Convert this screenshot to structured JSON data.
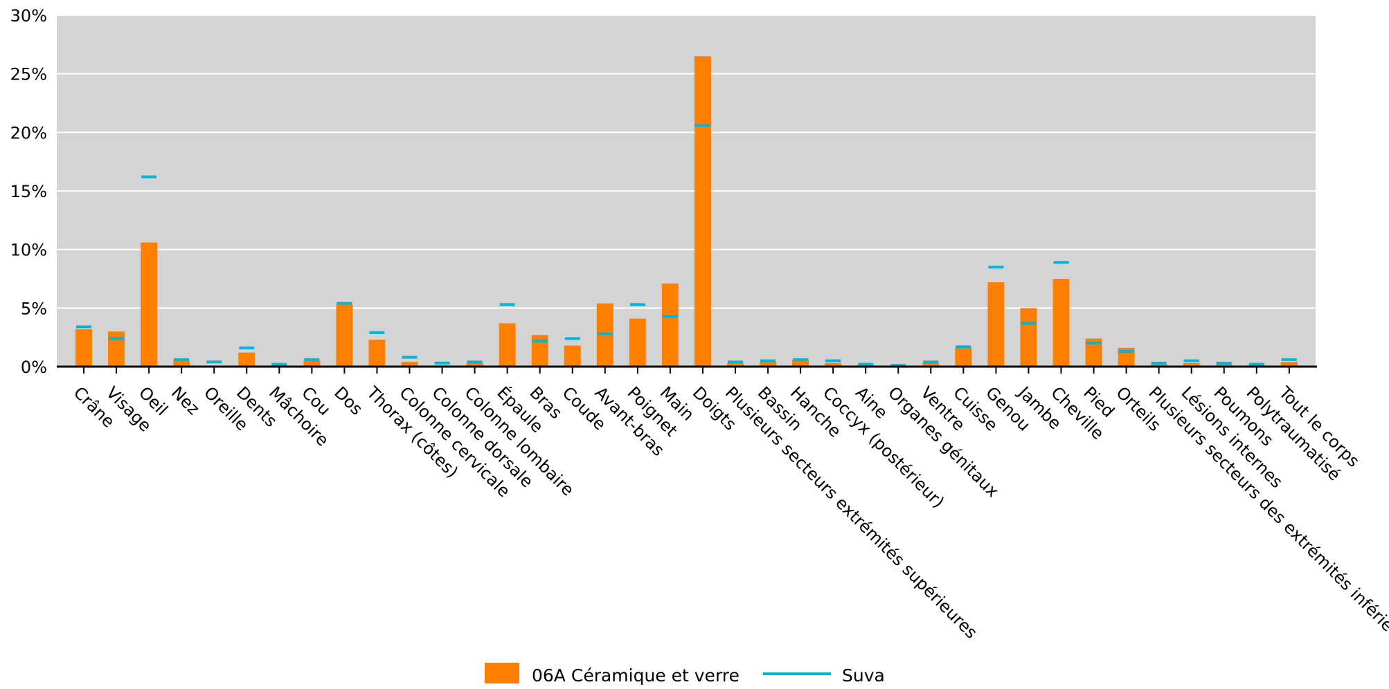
{
  "chart_data": {
    "type": "bar",
    "title": "",
    "xlabel": "",
    "ylabel": "",
    "ylim": [
      0,
      30
    ],
    "y_ticks": [
      "0%",
      "5%",
      "10%",
      "15%",
      "20%",
      "25%",
      "30%"
    ],
    "y_tick_values": [
      0,
      5,
      10,
      15,
      20,
      25,
      30
    ],
    "grid": true,
    "legend_position": "bottom-center",
    "categories": [
      "Crâne",
      "Visage",
      "Oeil",
      "Nez",
      "Oreille",
      "Dents",
      "Mâchoire",
      "Cou",
      "Dos",
      "Thorax (côtes)",
      "Colonne cervicale",
      "Colonne dorsale",
      "Colonne lombaire",
      "Épaule",
      "Bras",
      "Coude",
      "Avant-bras",
      "Poignet",
      "Main",
      "Doigts",
      "Plusieurs secteurs extrémités supérieures",
      "Bassin",
      "Hanche",
      "Coccyx (postérieur)",
      "Aine",
      "Organes génitaux",
      "Ventre",
      "Cuisse",
      "Genou",
      "Jambe",
      "Cheville",
      "Pied",
      "Orteils",
      "Plusieurs secteurs des extrémités inférieures",
      "Lésions internes",
      "Poumons",
      "Polytraumatisé",
      "Tout le corps"
    ],
    "series": [
      {
        "name": "06A Céramique et verre",
        "kind": "bar",
        "color": "#ff8000",
        "values": [
          3.2,
          3.0,
          10.6,
          0.5,
          0.0,
          1.2,
          0.1,
          0.5,
          5.3,
          2.3,
          0.4,
          0.1,
          0.3,
          3.7,
          2.7,
          1.8,
          5.4,
          4.1,
          7.1,
          26.5,
          0.3,
          0.4,
          0.6,
          0.3,
          0.1,
          0.0,
          0.3,
          1.6,
          7.2,
          5.0,
          7.5,
          2.4,
          1.6,
          0.2,
          0.3,
          0.2,
          0.1,
          0.4
        ]
      },
      {
        "name": "Suva",
        "kind": "marker",
        "color": "#00b5d6",
        "values": [
          3.4,
          2.4,
          16.2,
          0.6,
          0.4,
          1.6,
          0.2,
          0.6,
          5.4,
          2.9,
          0.8,
          0.3,
          0.4,
          5.3,
          2.2,
          2.4,
          2.8,
          5.3,
          4.3,
          20.6,
          0.4,
          0.5,
          0.6,
          0.5,
          0.2,
          0.1,
          0.4,
          1.7,
          8.5,
          3.7,
          8.9,
          2.0,
          1.3,
          0.3,
          0.5,
          0.3,
          0.2,
          0.6
        ]
      }
    ]
  },
  "colors": {
    "plot_background": "#d4d4d4",
    "gridline": "#ffffff",
    "axis": "#000000",
    "bar": "#ff8000",
    "marker": "#00b5d6"
  }
}
